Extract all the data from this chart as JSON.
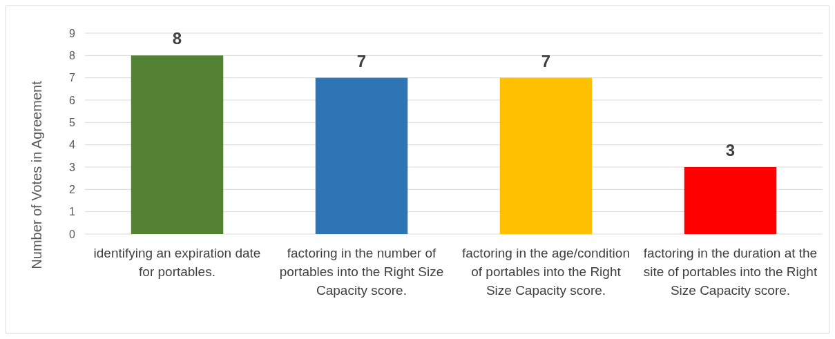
{
  "chart_data": {
    "type": "bar",
    "ylabel": "Number of Votes in Agreement",
    "categories": [
      "identifying an expiration date for portables.",
      "factoring in the number of portables into the Right Size Capacity score.",
      "factoring in the age/condition of portables into the Right Size Capacity score.",
      "factoring in the duration at the site of portables into the Right Size Capacity score."
    ],
    "values": [
      8,
      7,
      7,
      3
    ],
    "colors": [
      "#548235",
      "#2e75b6",
      "#ffc000",
      "#ff0000"
    ],
    "ylim": [
      0,
      9
    ],
    "yticks": [
      0,
      1,
      2,
      3,
      4,
      5,
      6,
      7,
      8,
      9
    ],
    "grid": "y",
    "data_labels": true
  }
}
